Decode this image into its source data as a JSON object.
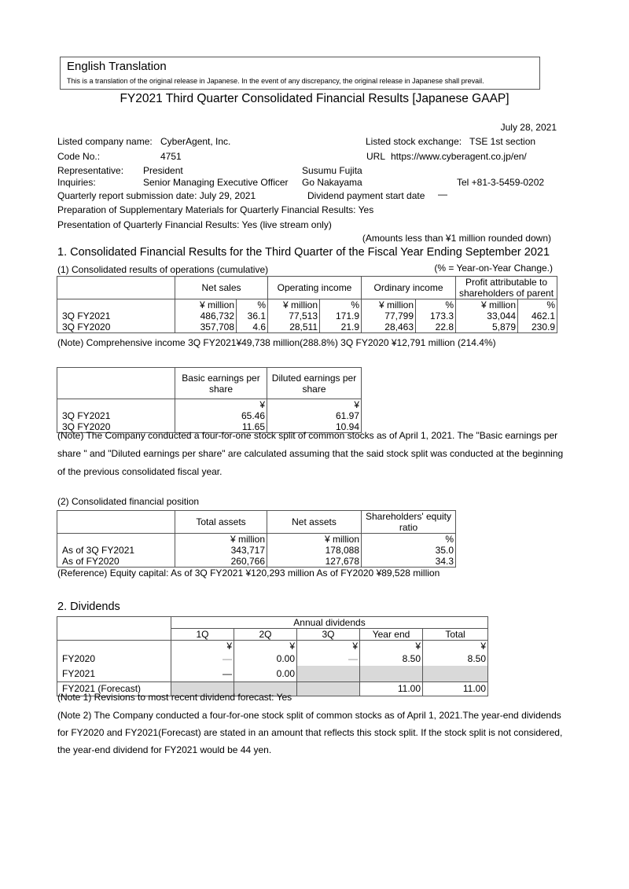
{
  "banner": {
    "title": "English Translation",
    "note": "This is a translation of the original release in Japanese. In the event of any discrepancy, the original release in Japanese shall prevail."
  },
  "title": "FY2021 Third Quarter Consolidated Financial Results [Japanese GAAP]",
  "date": "July 28, 2021",
  "info": {
    "company_label": "Listed company name:",
    "company": "CyberAgent, Inc.",
    "exchange_label": "Listed stock exchange:",
    "exchange": "TSE 1st section",
    "code_label": "Code No.:",
    "code": "4751",
    "url_label": "URL",
    "url": "https://www.cyberagent.co.jp/en/",
    "rep_label": "Representative:",
    "rep_title": "President",
    "rep_name": "Susumu Fujita",
    "inq_label": "Inquiries:",
    "inq_title": "Senior Managing Executive Officer",
    "inq_name": "Go Nakayama",
    "tel": "Tel +81-3-5459-0202",
    "submission": "Quarterly report submission date:   July 29, 2021",
    "div_start_label": "Dividend payment start date",
    "div_start": "—",
    "supp": "Preparation of Supplementary Materials for Quarterly Financial Results: Yes",
    "presentation": "Presentation of Quarterly Financial Results: Yes (live stream only)",
    "rounding": "(Amounts less than ¥1 million rounded down)"
  },
  "s1": {
    "heading": "1. Consolidated Financial Results for the Third Quarter of the Fiscal Year Ending September 2021",
    "sub": "(1) Consolidated results of operations (cumulative)",
    "yoy": "(% = Year-on-Year Change.)",
    "headers": [
      "Net sales",
      "Operating income",
      "Ordinary income",
      "Profit attributable to shareholders of parent"
    ],
    "unit_m": "¥ million",
    "unit_p": "%",
    "rows": [
      {
        "label": "3Q FY2021",
        "v": [
          "486,732",
          "36.1",
          "77,513",
          "171.9",
          "77,799",
          "173.3",
          "33,044",
          "462.1"
        ]
      },
      {
        "label": "3Q FY2020",
        "v": [
          "357,708",
          "4.6",
          "28,511",
          "21.9",
          "28,463",
          "22.8",
          "5,879",
          "230.9"
        ]
      }
    ],
    "note": "(Note) Comprehensive income 3Q FY2021¥49,738 million(288.8%)      3Q FY2020 ¥12,791 million (214.4%)"
  },
  "eps": {
    "headers": [
      "Basic earnings per share",
      "Diluted earnings per share"
    ],
    "unit": "¥",
    "rows": [
      {
        "label": "3Q FY2021",
        "v": [
          "65.46",
          "61.97"
        ]
      },
      {
        "label": "3Q FY2020",
        "v": [
          "11.65",
          "10.94"
        ]
      }
    ],
    "note": [
      "(Note) The Company conducted a four-for-one stock split of common stocks as of April 1, 2021. The \"Basic earnings per",
      "share \" and \"Diluted earnings per share\" are calculated assuming that the said stock split was conducted at the beginning",
      "of the previous consolidated fiscal year."
    ]
  },
  "s2": {
    "sub": "(2) Consolidated financial position",
    "headers": [
      "Total assets",
      "Net assets",
      "Shareholders' equity ratio"
    ],
    "units": [
      "¥ million",
      "¥ million",
      "%"
    ],
    "rows": [
      {
        "label": "As of 3Q FY2021",
        "v": [
          "343,717",
          "178,088",
          "35.0"
        ]
      },
      {
        "label": "As of FY2020",
        "v": [
          "260,766",
          "127,678",
          "34.3"
        ]
      }
    ],
    "ref": "(Reference) Equity capital:   As of 3Q FY2021    ¥120,293 million      As of FY2020    ¥89,528 million"
  },
  "div": {
    "heading": "2. Dividends",
    "group": "Annual dividends",
    "headers": [
      "1Q",
      "2Q",
      "3Q",
      "Year end",
      "Total"
    ],
    "unit": "¥",
    "rows": [
      {
        "label": "FY2020",
        "v": [
          "—",
          "0.00",
          "—",
          "8.50",
          "8.50"
        ]
      },
      {
        "label": "FY2021",
        "v": [
          "—",
          "0.00",
          "",
          "",
          ""
        ]
      },
      {
        "label": "FY2021 (Forecast)",
        "v": [
          "",
          "",
          "",
          "11.00",
          "11.00"
        ]
      }
    ],
    "notes": [
      "(Note 1) Revisions to most recent dividend forecast: Yes",
      "(Note 2) The Company conducted a four-for-one stock split of common stocks as of April 1, 2021.The year-end dividends",
      "for FY2020 and FY2021(Forecast) are stated in an amount that reflects this stock split. If the stock split is not considered,",
      "the year-end dividend for FY2021 would be 44 yen."
    ]
  }
}
